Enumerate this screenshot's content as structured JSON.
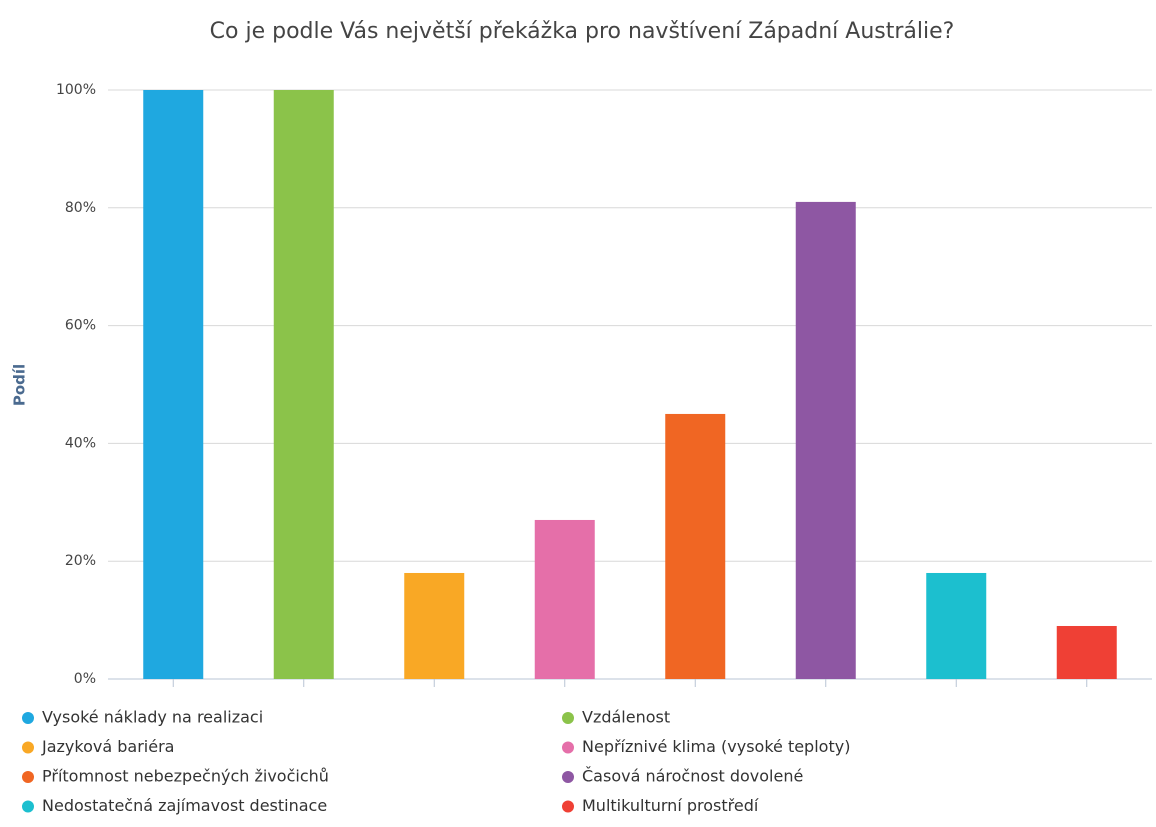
{
  "chart_data": {
    "type": "bar",
    "title": "Co je podle Vás největší překážka pro navštívení Západní Austrálie?",
    "y_label": "Podíl",
    "categories": [
      "Vysoké náklady na realizaci",
      "Vzdálenost",
      "Jazyková bariéra",
      "Nepříznivé klima (vysoké teploty)",
      "Přítomnost nebezpečných živočichů",
      "Časová náročnost dovolené",
      "Nedostatečná zajímavost destinace",
      "Multikulturní prostředí"
    ],
    "values": [
      100,
      100,
      18,
      27,
      45,
      81,
      18,
      9
    ],
    "colors": [
      "#1fa8e0",
      "#8bc34a",
      "#f9a825",
      "#e56fa9",
      "#f06623",
      "#8e57a3",
      "#1cbfcf",
      "#ef4035"
    ],
    "ylim": [
      0,
      100
    ],
    "yticks": [
      {
        "value": 0,
        "label": "0%"
      },
      {
        "value": 20,
        "label": "20%"
      },
      {
        "value": 40,
        "label": "40%"
      },
      {
        "value": 60,
        "label": "60%"
      },
      {
        "value": 80,
        "label": "80%"
      },
      {
        "value": 100,
        "label": "100%"
      }
    ],
    "grid": true,
    "legend": "bottom"
  }
}
